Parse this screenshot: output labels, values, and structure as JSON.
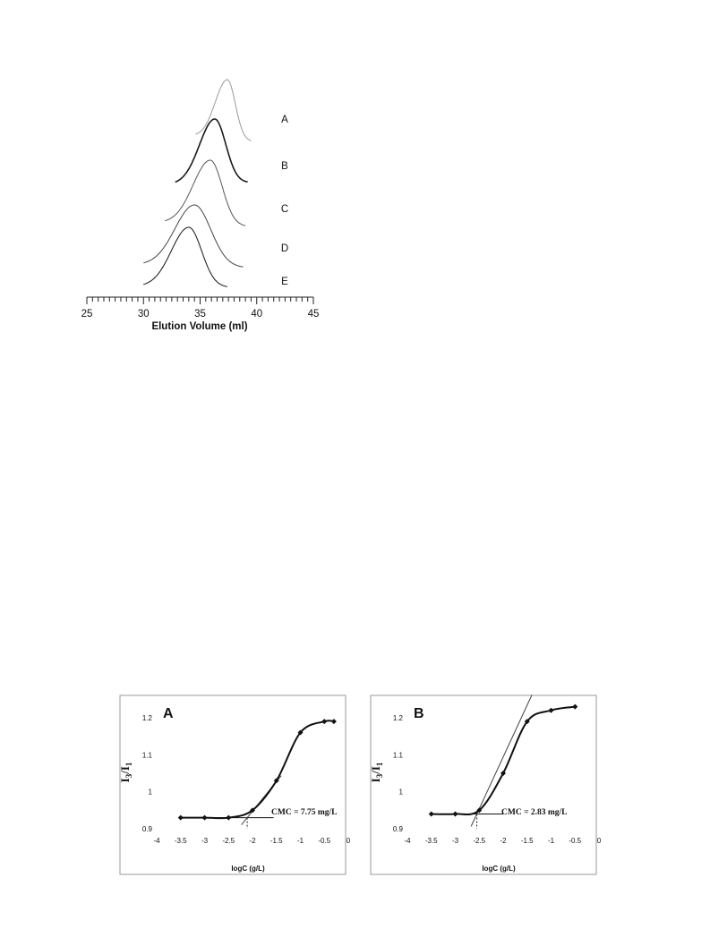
{
  "chart_data": [
    {
      "type": "line",
      "xlabel": "Elution Volume (ml)",
      "xlim": [
        25,
        45
      ],
      "xticks": [
        25,
        30,
        35,
        40,
        45
      ],
      "series": [
        {
          "name": "A",
          "peak": 37.4,
          "start": 34.6,
          "end": 39.5,
          "color": "#9a9a9a"
        },
        {
          "name": "B",
          "peak": 36.3,
          "start": 32.8,
          "end": 39.2,
          "color": "#1a1a1a"
        },
        {
          "name": "C",
          "peak": 35.9,
          "start": 31.9,
          "end": 39.0,
          "color": "#555555"
        },
        {
          "name": "D",
          "peak": 34.5,
          "start": 30.0,
          "end": 38.8,
          "color": "#444444"
        },
        {
          "name": "E",
          "peak": 34.0,
          "start": 30.0,
          "end": 37.4,
          "color": "#111111"
        }
      ]
    },
    {
      "type": "line",
      "panel": "A",
      "xlabel": "logC (g/L)",
      "ylabel": "I3/I1",
      "xlim": [
        -4,
        0
      ],
      "ylim": [
        0.9,
        1.2
      ],
      "xticks": [
        -4,
        -3.5,
        -3,
        -2.5,
        -2,
        -1.5,
        -1,
        -0.5,
        0
      ],
      "yticks": [
        0.9,
        1,
        1.1,
        1.2
      ],
      "x": [
        -3.5,
        -3,
        -2.5,
        -2,
        -1.5,
        -1,
        -0.5,
        -0.3
      ],
      "y": [
        0.93,
        0.93,
        0.93,
        0.95,
        1.03,
        1.16,
        1.19,
        1.19
      ],
      "cmc_logc": -2.11,
      "annotation": "CMC = 7.75 mg/L"
    },
    {
      "type": "line",
      "panel": "B",
      "xlabel": "logC (g/L)",
      "ylabel": "I3/I1",
      "xlim": [
        -4,
        0
      ],
      "ylim": [
        0.9,
        1.2
      ],
      "xticks": [
        -4,
        -3.5,
        -3,
        -2.5,
        -2,
        -1.5,
        -1,
        -0.5,
        0
      ],
      "yticks": [
        0.9,
        1,
        1.1,
        1.2
      ],
      "x": [
        -3.5,
        -3,
        -2.5,
        -2,
        -1.5,
        -1,
        -0.5
      ],
      "y": [
        0.94,
        0.94,
        0.95,
        1.05,
        1.19,
        1.22,
        1.23
      ],
      "cmc_logc": -2.55,
      "annotation": "CMC = 2.83 mg/L"
    }
  ]
}
